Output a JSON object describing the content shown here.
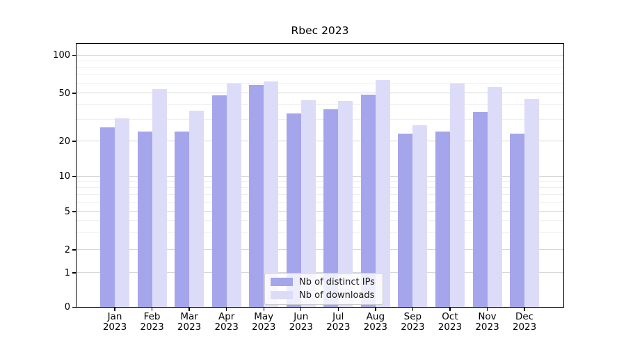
{
  "title": "Rbec 2023",
  "colors": {
    "distinct_ips": "#a5a5ec",
    "downloads": "#dddcf8",
    "grid_major": "#d7d7d7",
    "grid_minor": "#eeeeee",
    "spine": "#000000"
  },
  "legend": {
    "position": "lower center",
    "items": [
      {
        "label": "Nb of distinct IPs",
        "color_key": "distinct_ips"
      },
      {
        "label": "Nb of downloads",
        "color_key": "downloads"
      }
    ]
  },
  "chart_data": {
    "type": "bar",
    "title": "Rbec 2023",
    "categories": [
      "Jan 2023",
      "Feb 2023",
      "Mar 2023",
      "Apr 2023",
      "May 2023",
      "Jun 2023",
      "Jul 2023",
      "Aug 2023",
      "Sep 2023",
      "Oct 2023",
      "Nov 2023",
      "Dec 2023"
    ],
    "months": [
      "Jan",
      "Feb",
      "Mar",
      "Apr",
      "May",
      "Jun",
      "Jul",
      "Aug",
      "Sep",
      "Oct",
      "Nov",
      "Dec"
    ],
    "x_tick_year": "2023",
    "series": [
      {
        "name": "Nb of distinct IPs",
        "values": [
          26,
          24,
          24,
          48,
          58,
          34,
          37,
          49,
          23,
          24,
          35,
          23
        ]
      },
      {
        "name": "Nb of downloads",
        "values": [
          31,
          54,
          36,
          60,
          62,
          44,
          43,
          64,
          27,
          60,
          56,
          45
        ]
      }
    ],
    "xlabel": "",
    "ylabel": "",
    "y_ticks": [
      0,
      1,
      2,
      5,
      10,
      20,
      50,
      100
    ],
    "y_minor_gridlines": [
      3,
      4,
      6,
      7,
      8,
      9,
      30,
      40,
      60,
      70,
      80,
      90
    ],
    "y_scale": "log-like with linear 0-1 segment (symlog)",
    "ylim": [
      0,
      125
    ],
    "grid": true,
    "legend_position": "lower center"
  }
}
